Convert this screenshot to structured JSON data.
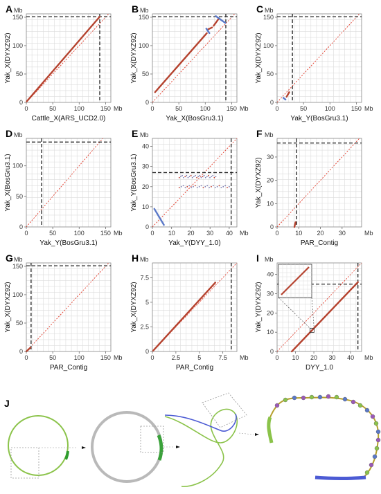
{
  "colors": {
    "alignment": "#b5422e",
    "inverted": "#5a78c8",
    "diagonal": "#e23b2a",
    "grid": "#dcdcdc",
    "border": "#8a8a8a",
    "noise": "#9fb3d8",
    "graph_green": "#8bc34a",
    "graph_blue": "#4c5bd4",
    "graph_purple": "#9b59b6",
    "ring_gray": "#b9b9b9"
  },
  "chart_data": [
    {
      "id": "A",
      "type": "scatter",
      "label": "A",
      "xlabel": "Cattle_X(ARS_UCD2.0)",
      "ylabel": "Yak_X(DYXZ92)",
      "unit": "Mb",
      "xlim": [
        0,
        160
      ],
      "ylim": [
        0,
        156
      ],
      "xticks": [
        0,
        50,
        100,
        150
      ],
      "yticks": [
        0,
        50,
        100,
        150
      ],
      "xcut": 139,
      "ycut": 151,
      "segments": [
        {
          "x0": 1,
          "y0": 2,
          "x1": 139,
          "y1": 151,
          "kind": "forward"
        }
      ]
    },
    {
      "id": "B",
      "type": "scatter",
      "label": "B",
      "xlabel": "Yak_X(BosGru3.1)",
      "ylabel": "Yak_X(DYXZ92)",
      "unit": "Mb",
      "xlim": [
        0,
        160
      ],
      "ylim": [
        0,
        156
      ],
      "xticks": [
        0,
        50,
        100,
        150
      ],
      "yticks": [
        0,
        50,
        100,
        150
      ],
      "xcut": 139,
      "ycut": 151,
      "segments": [
        {
          "x0": 5,
          "y0": 18,
          "x1": 103,
          "y1": 122,
          "kind": "forward"
        },
        {
          "x0": 104,
          "y0": 128,
          "x1": 113,
          "y1": 132,
          "kind": "forward"
        },
        {
          "x0": 116,
          "y0": 135,
          "x1": 126,
          "y1": 148,
          "kind": "forward"
        },
        {
          "x0": 120,
          "y0": 152,
          "x1": 138,
          "y1": 140,
          "kind": "inverted"
        },
        {
          "x0": 102,
          "y0": 130,
          "x1": 108,
          "y1": 122,
          "kind": "inverted"
        }
      ]
    },
    {
      "id": "C",
      "type": "scatter",
      "label": "C",
      "xlabel": "Yak_Y(BosGru3.1)",
      "ylabel": "Yak_X(DYXZ92)",
      "unit": "Mb",
      "xlim": [
        0,
        160
      ],
      "ylim": [
        0,
        156
      ],
      "xticks": [
        0,
        50,
        100,
        150
      ],
      "yticks": [
        0,
        50,
        100,
        150
      ],
      "xcut": 29,
      "ycut": 151,
      "segments": [
        {
          "x0": 18,
          "y0": 10,
          "x1": 23,
          "y1": 18,
          "kind": "forward"
        },
        {
          "x0": 12,
          "y0": 8,
          "x1": 16,
          "y1": 5,
          "kind": "inverted"
        }
      ]
    },
    {
      "id": "D",
      "type": "scatter",
      "label": "D",
      "xlabel": "Yak_Y(BosGru3.1)",
      "ylabel": "Yak_X(BosGru3.1)",
      "unit": "Mb",
      "xlim": [
        0,
        160
      ],
      "ylim": [
        0,
        145
      ],
      "xticks": [
        0,
        50,
        100,
        150
      ],
      "yticks": [
        0,
        50,
        100
      ],
      "xcut": 29,
      "ycut": 139,
      "segments": []
    },
    {
      "id": "E",
      "type": "scatter",
      "label": "E",
      "xlabel": "Yak_Y(DYY_1.0)",
      "ylabel": "Yak_Y(BosGru3.1)",
      "unit": "Mb",
      "xlim": [
        0,
        44
      ],
      "ylim": [
        0,
        44
      ],
      "xticks": [
        0,
        10,
        20,
        30,
        40
      ],
      "yticks": [
        0,
        10,
        20,
        30,
        40
      ],
      "xcut": 41,
      "ycut": 27,
      "segments": [
        {
          "x0": 1,
          "y0": 9,
          "x1": 6,
          "y1": 1,
          "kind": "inverted"
        },
        {
          "x0": 14,
          "y0": 20,
          "x1": 40,
          "y1": 20,
          "kind": "noise"
        },
        {
          "x0": 14,
          "y0": 25,
          "x1": 33,
          "y1": 25,
          "kind": "noise"
        }
      ]
    },
    {
      "id": "F",
      "type": "scatter",
      "label": "F",
      "xlabel": "PAR_Contig",
      "ylabel": "Yak_X(DYXZ92)",
      "unit": "Mb",
      "xlim": [
        0,
        39
      ],
      "ylim": [
        0,
        38
      ],
      "xticks": [
        0,
        10,
        20,
        30
      ],
      "yticks": [
        0,
        10,
        20,
        30
      ],
      "xcut": 9,
      "ycut": 36,
      "segments": [
        {
          "x0": 8,
          "y0": 0,
          "x1": 8.5,
          "y1": 2,
          "kind": "forward"
        }
      ]
    },
    {
      "id": "G",
      "type": "scatter",
      "label": "G",
      "xlabel": "PAR_Contig",
      "ylabel": "Yak_X(DYXZ92)",
      "unit": "Mb",
      "xlim": [
        0,
        160
      ],
      "ylim": [
        0,
        156
      ],
      "xticks": [
        0,
        50,
        100,
        150
      ],
      "yticks": [
        0,
        50,
        100,
        150
      ],
      "xcut": 9,
      "ycut": 151,
      "segments": [
        {
          "x0": 0,
          "y0": 0,
          "x1": 8,
          "y1": 7,
          "kind": "forward"
        }
      ]
    },
    {
      "id": "H",
      "type": "scatter",
      "label": "H",
      "xlabel": "PAR_Contig",
      "ylabel": "Yak_X(DYXZ92)",
      "unit": "Mb",
      "xlim": [
        0,
        9
      ],
      "ylim": [
        0,
        9
      ],
      "xticks": [
        0,
        2.5,
        5,
        7.5
      ],
      "yticks": [
        0,
        2.5,
        5,
        7.5
      ],
      "xcut": 8.4,
      "ycut": null,
      "segments": [
        {
          "x0": 0.1,
          "y0": 0.1,
          "x1": 6.7,
          "y1": 7,
          "kind": "forward"
        }
      ]
    },
    {
      "id": "I",
      "type": "scatter",
      "label": "I",
      "xlabel": "DYY_1.0",
      "ylabel": "Yak_Y(DYXZ92)",
      "unit": "Mb",
      "xlim": [
        0,
        46
      ],
      "ylim": [
        0,
        46
      ],
      "xticks": [
        0,
        10,
        20,
        30,
        40
      ],
      "yticks": [
        0,
        10,
        20,
        30,
        40
      ],
      "xcut": 44,
      "ycut": 35,
      "segments": [
        {
          "x0": 8,
          "y0": 0,
          "x1": 44,
          "y1": 36,
          "kind": "forward"
        }
      ]
    }
  ],
  "panel_j": {
    "label": "J"
  }
}
